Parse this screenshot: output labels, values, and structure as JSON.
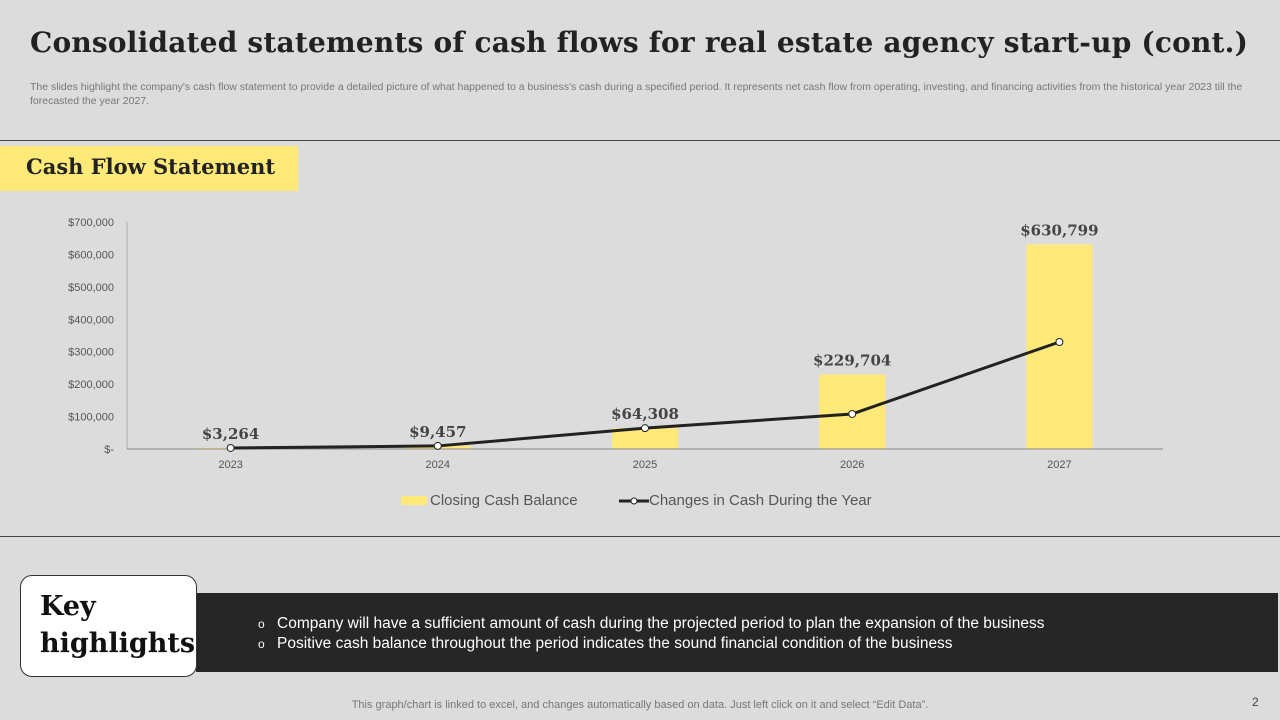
{
  "title": "Consolidated statements of cash flows for real estate agency start-up (cont.)",
  "subtitle": "The slides highlight the company's cash flow statement to provide a detailed picture of what happened to a business's cash during a specified period. It represents net cash flow from operating, investing, and financing activities from the historical year 2023 till the forecasted the year 2027.",
  "chart_label": "Cash Flow Statement",
  "chart_data": {
    "type": "bar",
    "categories": [
      "2023",
      "2024",
      "2025",
      "2026",
      "2027"
    ],
    "series": [
      {
        "name": "Closing Cash Balance",
        "type": "bar",
        "color": "#fee979",
        "values": [
          3264,
          9457,
          64308,
          229704,
          630799
        ],
        "labels": [
          "$3,264",
          "$9,457",
          "$64,308",
          "$229,704",
          "$630,799"
        ]
      },
      {
        "name": "Changes in Cash During the Year",
        "type": "line",
        "color": "#222222",
        "values": [
          3264,
          9457,
          64308,
          108000,
          330000
        ]
      }
    ],
    "yticks": [
      "$-",
      "$100,000",
      "$200,000",
      "$300,000",
      "$400,000",
      "$500,000",
      "$600,000",
      "$700,000"
    ],
    "ylim": [
      0,
      700000
    ],
    "legend": "bottom"
  },
  "highlights": {
    "title_line1": "Key",
    "title_line2": "highlights",
    "bullet": "o",
    "items": [
      "Company will have a sufficient amount of cash during the projected period to plan the expansion of the business",
      "Positive cash balance throughout the period indicates the sound financial condition of the business"
    ]
  },
  "footer": "This graph/chart is linked to excel, and changes automatically based on data. Just left click on it and select “Edit Data”.",
  "page_number": "2"
}
